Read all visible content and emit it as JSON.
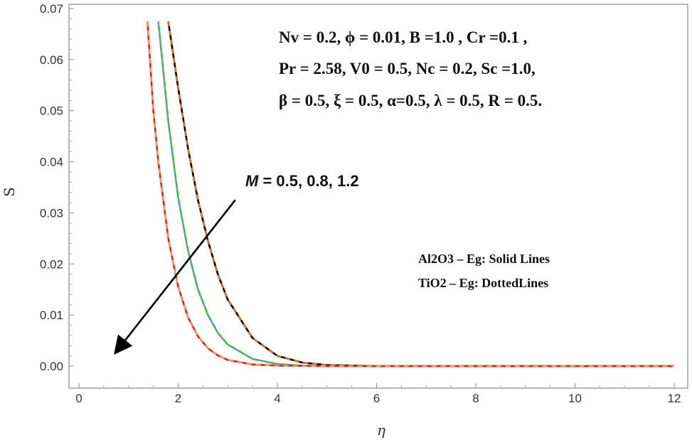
{
  "chart_data": {
    "type": "line",
    "xlabel": "η",
    "ylabel": "S",
    "xlim": [
      0,
      12
    ],
    "ylim": [
      0,
      0.07
    ],
    "xticks": [
      "0",
      "2",
      "4",
      "6",
      "8",
      "10",
      "12"
    ],
    "yticks": [
      "0.00",
      "0.01",
      "0.02",
      "0.03",
      "0.04",
      "0.05",
      "0.06",
      "0.07"
    ],
    "grid": false,
    "parameters": [
      "Nv = 0.2, ϕ = 0.01, B =1.0 , Cr =0.1 ,",
      "Pr = 2.58, V0 = 0.5, Nc = 0.2, Sc =1.0,",
      "β = 0.5, ξ = 0.5, α=0.5, λ = 0.5, R = 0.5."
    ],
    "arrow_label": "M = 0.5,  0.8,  1.2",
    "arrow_var": "M",
    "arrow_values": " = 0.5,  0.8,  1.2",
    "legend": [
      "Al2O3 – Eg: Solid Lines",
      "TiO2 – Eg: DottedLines"
    ],
    "series": [
      {
        "name": "Al2O3-Eg, M = 0.5",
        "style": "solid",
        "color": "#000000",
        "x": [
          1.8,
          2.0,
          2.2,
          2.4,
          2.6,
          2.8,
          3.0,
          3.5,
          4.0,
          4.5,
          5.0,
          6.0,
          8.0,
          12.0
        ],
        "y": [
          0.0675,
          0.0545,
          0.0425,
          0.0325,
          0.0245,
          0.018,
          0.013,
          0.0055,
          0.002,
          0.0007,
          0.0002,
          0.0,
          0.0,
          0.0
        ]
      },
      {
        "name": "TiO2-Eg, M = 0.5",
        "style": "dashed",
        "color": "#e87722",
        "x": [
          1.8,
          2.0,
          2.2,
          2.4,
          2.6,
          2.8,
          3.0,
          3.5,
          4.0,
          4.5,
          5.0,
          6.0,
          8.0,
          12.0
        ],
        "y": [
          0.0675,
          0.0545,
          0.0425,
          0.0325,
          0.0245,
          0.018,
          0.013,
          0.0055,
          0.002,
          0.0007,
          0.0002,
          0.0,
          0.0,
          0.0
        ]
      },
      {
        "name": "Al2O3-Eg, M = 0.8",
        "style": "solid",
        "color": "#22cc22",
        "x": [
          1.6,
          1.8,
          2.0,
          2.2,
          2.4,
          2.6,
          2.8,
          3.0,
          3.5,
          4.0,
          4.5,
          5.0,
          6.0,
          8.0,
          12.0
        ],
        "y": [
          0.0675,
          0.048,
          0.033,
          0.0225,
          0.015,
          0.01,
          0.0065,
          0.0042,
          0.0014,
          0.0004,
          0.0001,
          0.0,
          0.0,
          0.0,
          0.0
        ]
      },
      {
        "name": "TiO2-Eg, M = 0.8",
        "style": "dashed",
        "color": "#8a8ad0",
        "x": [
          1.6,
          1.8,
          2.0,
          2.2,
          2.4,
          2.6,
          2.8,
          3.0,
          3.5,
          4.0,
          4.5,
          5.0,
          6.0,
          8.0,
          12.0
        ],
        "y": [
          0.0675,
          0.048,
          0.033,
          0.0225,
          0.015,
          0.01,
          0.0065,
          0.0042,
          0.0014,
          0.0004,
          0.0001,
          0.0,
          0.0,
          0.0,
          0.0
        ]
      },
      {
        "name": "Al2O3-Eg, M = 1.2",
        "style": "solid",
        "color": "#e02020",
        "x": [
          1.38,
          1.5,
          1.6,
          1.8,
          2.0,
          2.2,
          2.4,
          2.6,
          2.8,
          3.0,
          3.5,
          4.0,
          5.0,
          6.0,
          8.0,
          12.0
        ],
        "y": [
          0.0675,
          0.05,
          0.04,
          0.025,
          0.0155,
          0.0095,
          0.0058,
          0.0035,
          0.0021,
          0.0012,
          0.0003,
          0.0001,
          0.0,
          0.0,
          0.0,
          0.0
        ]
      },
      {
        "name": "TiO2-Eg, M = 1.2",
        "style": "dashed",
        "color": "#e8a060",
        "x": [
          1.38,
          1.5,
          1.6,
          1.8,
          2.0,
          2.2,
          2.4,
          2.6,
          2.8,
          3.0,
          3.5,
          4.0,
          5.0,
          6.0,
          8.0,
          12.0
        ],
        "y": [
          0.0675,
          0.05,
          0.04,
          0.025,
          0.0155,
          0.0095,
          0.0058,
          0.0035,
          0.0021,
          0.0012,
          0.0003,
          0.0001,
          0.0,
          0.0,
          0.0,
          0.0
        ]
      }
    ],
    "arrow": {
      "from": [
        3.15,
        0.0325
      ],
      "to": [
        0.75,
        0.0028
      ]
    }
  }
}
